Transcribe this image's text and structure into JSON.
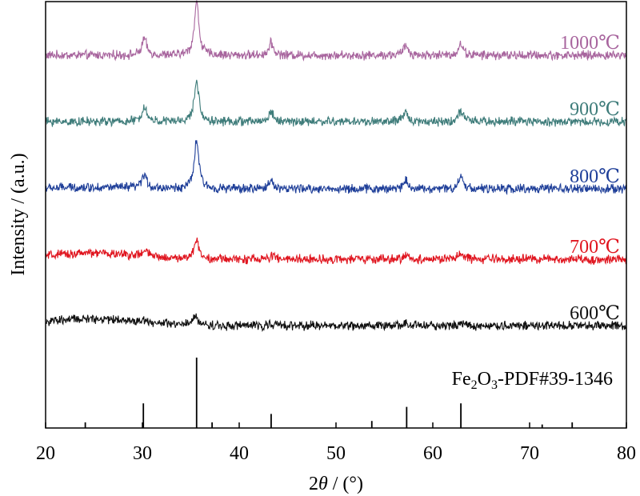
{
  "chart_data": {
    "type": "line",
    "title": "",
    "xlabel_prefix": "2",
    "xlabel_symbol": "θ",
    "xlabel_suffix": " / (°)",
    "ylabel": "Intensity / (a.u.)",
    "xlim": [
      20,
      80
    ],
    "xticks": [
      20,
      30,
      40,
      50,
      60,
      70,
      80
    ],
    "yticks_shown": false,
    "grid": false,
    "legend": "inline labels at right end of each curve",
    "series": [
      {
        "name": "1000℃",
        "color": "#a8659e",
        "baseline": 0.1,
        "noise": 0.9,
        "hump": 0.0,
        "peaks": [
          [
            30.2,
            2.2
          ],
          [
            35.6,
            7.0
          ],
          [
            43.3,
            1.6
          ],
          [
            57.2,
            1.3
          ],
          [
            62.9,
            1.5
          ]
        ]
      },
      {
        "name": "900℃",
        "color": "#3e7c7a",
        "baseline": 0.1,
        "noise": 0.9,
        "hump": 0.0,
        "peaks": [
          [
            30.2,
            2.0
          ],
          [
            35.6,
            5.4
          ],
          [
            43.3,
            1.3
          ],
          [
            57.2,
            1.2
          ],
          [
            62.9,
            1.5
          ]
        ]
      },
      {
        "name": "800℃",
        "color": "#1f3f99",
        "baseline": 0.1,
        "noise": 0.9,
        "hump": 0.2,
        "peaks": [
          [
            30.2,
            1.8
          ],
          [
            35.6,
            6.4
          ],
          [
            43.3,
            1.2
          ],
          [
            57.2,
            1.2
          ],
          [
            62.9,
            1.7
          ]
        ]
      },
      {
        "name": "700℃",
        "color": "#e0151f",
        "baseline": 0.1,
        "noise": 0.9,
        "hump": 0.8,
        "peaks": [
          [
            30.3,
            0.8
          ],
          [
            35.6,
            2.6
          ],
          [
            43.5,
            0.5
          ],
          [
            57.3,
            0.5
          ],
          [
            62.9,
            0.8
          ]
        ]
      },
      {
        "name": "600℃",
        "color": "#111111",
        "baseline": 0.1,
        "noise": 0.9,
        "hump": 0.9,
        "peaks": [
          [
            30.3,
            0.4
          ],
          [
            35.5,
            1.3
          ],
          [
            43.3,
            0.3
          ],
          [
            57.3,
            0.3
          ],
          [
            62.9,
            0.3
          ]
        ]
      }
    ],
    "reference": {
      "name": "Fe2O3-PDF#39-1346",
      "label_parts": [
        "Fe",
        "2",
        "O",
        "3",
        "-PDF#39-1346"
      ],
      "color": "#000000",
      "lines": [
        [
          24.1,
          0.08
        ],
        [
          30.1,
          0.35
        ],
        [
          35.6,
          1.0
        ],
        [
          37.2,
          0.08
        ],
        [
          43.3,
          0.2
        ],
        [
          53.7,
          0.1
        ],
        [
          57.3,
          0.3
        ],
        [
          62.9,
          0.35
        ],
        [
          71.3,
          0.05
        ],
        [
          74.4,
          0.08
        ]
      ]
    }
  }
}
